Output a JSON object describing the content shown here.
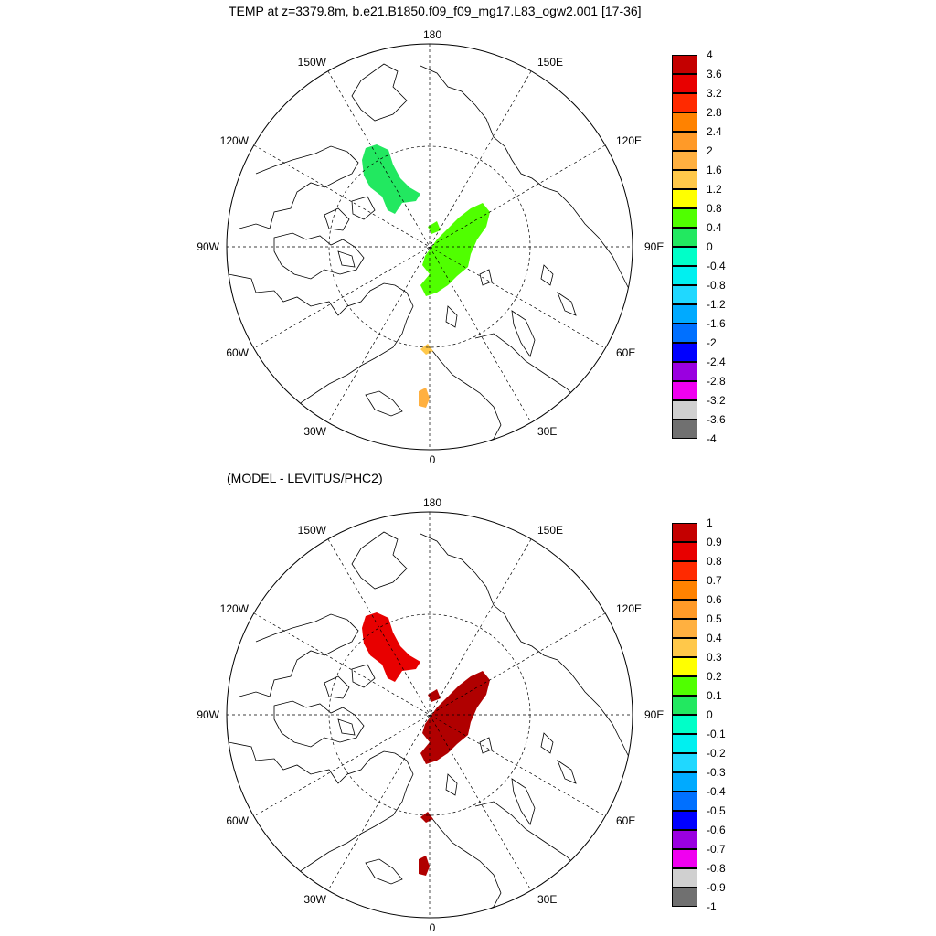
{
  "title": "TEMP at z=3379.8m, b.e21.B1850.f09_f09_mg17.L83_ogw2.001 [17-36]",
  "subtitle": "(MODEL - LEVITUS/PHC2)",
  "lon_labels": {
    "top": "180",
    "bottom": "0",
    "left": "90W",
    "right": "90E",
    "upper_left_outer": "150W",
    "upper_left_inner": "120W",
    "upper_right_outer": "150E",
    "upper_right_inner": "120E",
    "lower_left_inner": "60W",
    "lower_left_outer": "30W",
    "lower_right_inner": "60E",
    "lower_right_outer": "30E"
  },
  "colorbar_top": {
    "labels": [
      "4",
      "3.6",
      "3.2",
      "2.8",
      "2.4",
      "2",
      "1.6",
      "1.2",
      "0.8",
      "0.4",
      "0",
      "-0.4",
      "-0.8",
      "-1.2",
      "-1.6",
      "-2",
      "-2.4",
      "-2.8",
      "-3.2",
      "-3.6",
      "-4"
    ],
    "colors": [
      "#C40000",
      "#E80000",
      "#FF2A00",
      "#FF8200",
      "#FF9A28",
      "#FFB040",
      "#FFC84A",
      "#FFFF00",
      "#50FF00",
      "#22E860",
      "#00FFC8",
      "#00F0F0",
      "#20D8FF",
      "#00AAFF",
      "#0070FF",
      "#0000FF",
      "#9A00E0",
      "#F000F0",
      "#D0D0D0",
      "#707070"
    ]
  },
  "colorbar_bottom": {
    "labels": [
      "1",
      "0.9",
      "0.8",
      "0.7",
      "0.6",
      "0.5",
      "0.4",
      "0.3",
      "0.2",
      "0.1",
      "0",
      "-0.1",
      "-0.2",
      "-0.3",
      "-0.4",
      "-0.5",
      "-0.6",
      "-0.7",
      "-0.8",
      "-0.9",
      "-1"
    ],
    "colors": [
      "#C40000",
      "#E80000",
      "#FF2A00",
      "#FF8200",
      "#FF9A28",
      "#FFB040",
      "#FFC84A",
      "#FFFF00",
      "#50FF00",
      "#22E860",
      "#00FFC8",
      "#00F0F0",
      "#20D8FF",
      "#00AAFF",
      "#0070FF",
      "#0000FF",
      "#9A00E0",
      "#F000F0",
      "#D0D0D0",
      "#707070"
    ]
  },
  "anomaly_colors_top": {
    "canada_basin": "#22E860",
    "eurasian_basin": "#50FF00",
    "fram_strait": "#FFC84A",
    "norwegian_sea": "#FFB040"
  },
  "anomaly_colors_bottom": {
    "canada_basin": "#E80000",
    "eurasian_basin": "#B00000",
    "fram_strait": "#B00000",
    "norwegian_sea": "#B00000"
  }
}
